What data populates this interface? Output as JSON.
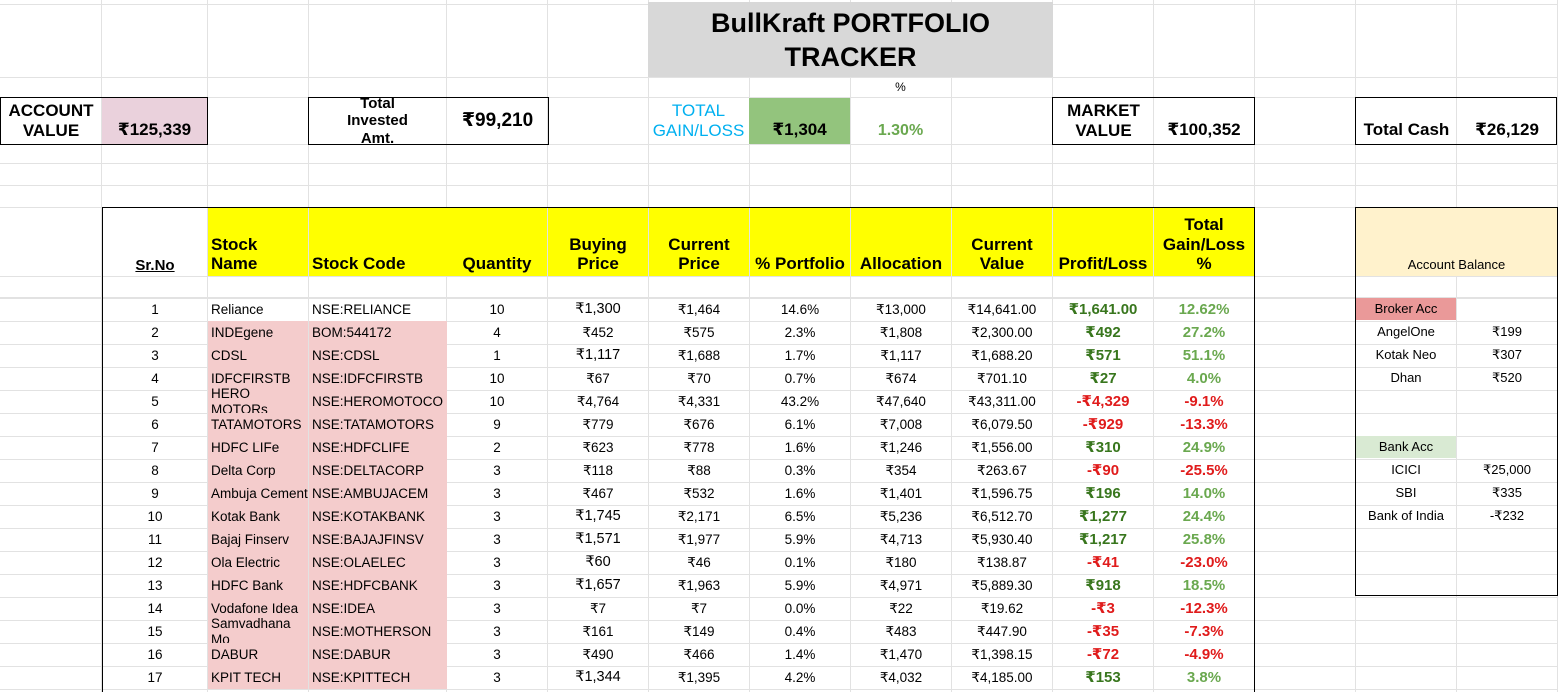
{
  "title": {
    "line1": "BullKraft PORTFOLIO",
    "line2": "TRACKER"
  },
  "summary": {
    "pct_label": "%",
    "account_value_label": "ACCOUNT VALUE",
    "account_value": "₹125,339",
    "total_invested_label": "Total Invested Amt.",
    "total_invested": "₹99,210",
    "total_gain_label": "TOTAL GAIN/LOSS",
    "total_gain": "₹1,304",
    "total_gain_pct": "1.30%",
    "market_value_label": "MARKET VALUE",
    "market_value": "₹100,352",
    "total_cash_label": "Total Cash",
    "total_cash": "₹26,129"
  },
  "table": {
    "headers": {
      "srno": "Sr.No",
      "name": "Stock Name",
      "code": "Stock Code",
      "qty": "Quantity",
      "buy": "Buying Price",
      "cur": "Current Price",
      "port": "% Portfolio",
      "alloc": "Allocation",
      "curval": "Current Value",
      "pl": "Profit/Loss",
      "gl": "Total Gain/Loss %"
    },
    "rows": [
      {
        "sr": "1",
        "name": "Reliance",
        "code": "NSE:RELIANCE",
        "qty": "10",
        "buy": "₹1,300",
        "cur": "₹1,464",
        "port": "14.6%",
        "alloc": "₹13,000",
        "curval": "₹14,641.00",
        "pl": "₹1,641.00",
        "gl": "12.62%",
        "sign": "pos",
        "hl": false
      },
      {
        "sr": "2",
        "name": "INDEgene",
        "code": "BOM:544172",
        "qty": "4",
        "buy": "₹452",
        "cur": "₹575",
        "port": "2.3%",
        "alloc": "₹1,808",
        "curval": "₹2,300.00",
        "pl": "₹492",
        "gl": "27.2%",
        "sign": "pos",
        "hl": true
      },
      {
        "sr": "3",
        "name": "CDSL",
        "code": "NSE:CDSL",
        "qty": "1",
        "buy": "₹1,117",
        "cur": "₹1,688",
        "port": "1.7%",
        "alloc": "₹1,117",
        "curval": "₹1,688.20",
        "pl": "₹571",
        "gl": "51.1%",
        "sign": "pos",
        "hl": true
      },
      {
        "sr": "4",
        "name": "IDFCFIRSTB",
        "code": "NSE:IDFCFIRSTB",
        "qty": "10",
        "buy": "₹67",
        "cur": "₹70",
        "port": "0.7%",
        "alloc": "₹674",
        "curval": "₹701.10",
        "pl": "₹27",
        "gl": "4.0%",
        "sign": "pos",
        "hl": true
      },
      {
        "sr": "5",
        "name": "HERO MOTORs",
        "code": "NSE:HEROMOTOCO",
        "qty": "10",
        "buy": "₹4,764",
        "cur": "₹4,331",
        "port": "43.2%",
        "alloc": "₹47,640",
        "curval": "₹43,311.00",
        "pl": "-₹4,329",
        "gl": "-9.1%",
        "sign": "neg",
        "hl": true
      },
      {
        "sr": "6",
        "name": "TATAMOTORS",
        "code": "NSE:TATAMOTORS",
        "qty": "9",
        "buy": "₹779",
        "cur": "₹676",
        "port": "6.1%",
        "alloc": "₹7,008",
        "curval": "₹6,079.50",
        "pl": "-₹929",
        "gl": "-13.3%",
        "sign": "neg",
        "hl": true
      },
      {
        "sr": "7",
        "name": "HDFC LIFe",
        "code": "NSE:HDFCLIFE",
        "qty": "2",
        "buy": "₹623",
        "cur": "₹778",
        "port": "1.6%",
        "alloc": "₹1,246",
        "curval": "₹1,556.00",
        "pl": "₹310",
        "gl": "24.9%",
        "sign": "pos",
        "hl": true
      },
      {
        "sr": "8",
        "name": "Delta Corp",
        "code": "NSE:DELTACORP",
        "qty": "3",
        "buy": "₹118",
        "cur": "₹88",
        "port": "0.3%",
        "alloc": "₹354",
        "curval": "₹263.67",
        "pl": "-₹90",
        "gl": "-25.5%",
        "sign": "neg",
        "hl": true
      },
      {
        "sr": "9",
        "name": "Ambuja Cement",
        "code": "NSE:AMBUJACEM",
        "qty": "3",
        "buy": "₹467",
        "cur": "₹532",
        "port": "1.6%",
        "alloc": "₹1,401",
        "curval": "₹1,596.75",
        "pl": "₹196",
        "gl": "14.0%",
        "sign": "pos",
        "hl": true
      },
      {
        "sr": "10",
        "name": "Kotak Bank",
        "code": "NSE:KOTAKBANK",
        "qty": "3",
        "buy": "₹1,745",
        "cur": "₹2,171",
        "port": "6.5%",
        "alloc": "₹5,236",
        "curval": "₹6,512.70",
        "pl": "₹1,277",
        "gl": "24.4%",
        "sign": "pos",
        "hl": true
      },
      {
        "sr": "11",
        "name": "Bajaj Finserv",
        "code": "NSE:BAJAJFINSV",
        "qty": "3",
        "buy": "₹1,571",
        "cur": "₹1,977",
        "port": "5.9%",
        "alloc": "₹4,713",
        "curval": "₹5,930.40",
        "pl": "₹1,217",
        "gl": "25.8%",
        "sign": "pos",
        "hl": true
      },
      {
        "sr": "12",
        "name": "Ola Electric",
        "code": "NSE:OLAELEC",
        "qty": "3",
        "buy": "₹60",
        "cur": "₹46",
        "port": "0.1%",
        "alloc": "₹180",
        "curval": "₹138.87",
        "pl": "-₹41",
        "gl": "-23.0%",
        "sign": "neg",
        "hl": true
      },
      {
        "sr": "13",
        "name": "HDFC Bank",
        "code": "NSE:HDFCBANK",
        "qty": "3",
        "buy": "₹1,657",
        "cur": "₹1,963",
        "port": "5.9%",
        "alloc": "₹4,971",
        "curval": "₹5,889.30",
        "pl": "₹918",
        "gl": "18.5%",
        "sign": "pos",
        "hl": true
      },
      {
        "sr": "14",
        "name": "Vodafone Idea",
        "code": "NSE:IDEA",
        "qty": "3",
        "buy": "₹7",
        "cur": "₹7",
        "port": "0.0%",
        "alloc": "₹22",
        "curval": "₹19.62",
        "pl": "-₹3",
        "gl": "-12.3%",
        "sign": "neg",
        "hl": true
      },
      {
        "sr": "15",
        "name": "Samvadhana Mo",
        "code": "NSE:MOTHERSON",
        "qty": "3",
        "buy": "₹161",
        "cur": "₹149",
        "port": "0.4%",
        "alloc": "₹483",
        "curval": "₹447.90",
        "pl": "-₹35",
        "gl": "-7.3%",
        "sign": "neg",
        "hl": true
      },
      {
        "sr": "16",
        "name": "DABUR",
        "code": "NSE:DABUR",
        "qty": "3",
        "buy": "₹490",
        "cur": "₹466",
        "port": "1.4%",
        "alloc": "₹1,470",
        "curval": "₹1,398.15",
        "pl": "-₹72",
        "gl": "-4.9%",
        "sign": "neg",
        "hl": true
      },
      {
        "sr": "17",
        "name": "KPIT TECH",
        "code": "NSE:KPITTECH",
        "qty": "3",
        "buy": "₹1,344",
        "cur": "₹1,395",
        "port": "4.2%",
        "alloc": "₹4,032",
        "curval": "₹4,185.00",
        "pl": "₹153",
        "gl": "3.8%",
        "sign": "pos",
        "hl": true
      }
    ]
  },
  "account_balance": {
    "header": "Account Balance",
    "broker_label": "Broker Acc",
    "brokers": [
      {
        "name": "AngelOne",
        "value": "₹199"
      },
      {
        "name": "Kotak Neo",
        "value": "₹307"
      },
      {
        "name": "Dhan",
        "value": "₹520"
      }
    ],
    "bank_label": "Bank Acc",
    "banks": [
      {
        "name": "ICICI",
        "value": "₹25,000"
      },
      {
        "name": "SBI",
        "value": "₹335"
      },
      {
        "name": "Bank of India",
        "value": "-₹232"
      }
    ]
  },
  "colors": {
    "title_bg": "#d8d8d8",
    "account_value_bg": "#ead1dc",
    "gain_bg": "#93c47d",
    "header_bg": "#ffff00",
    "row_highlight": "#f4cccc",
    "balance_header_bg": "#fff2cc",
    "broker_label_bg": "#ea9999",
    "bank_label_bg": "#d9ead3",
    "positive": "#38761d",
    "negative": "#e01b1b",
    "gain_label": "#00b0f0"
  }
}
